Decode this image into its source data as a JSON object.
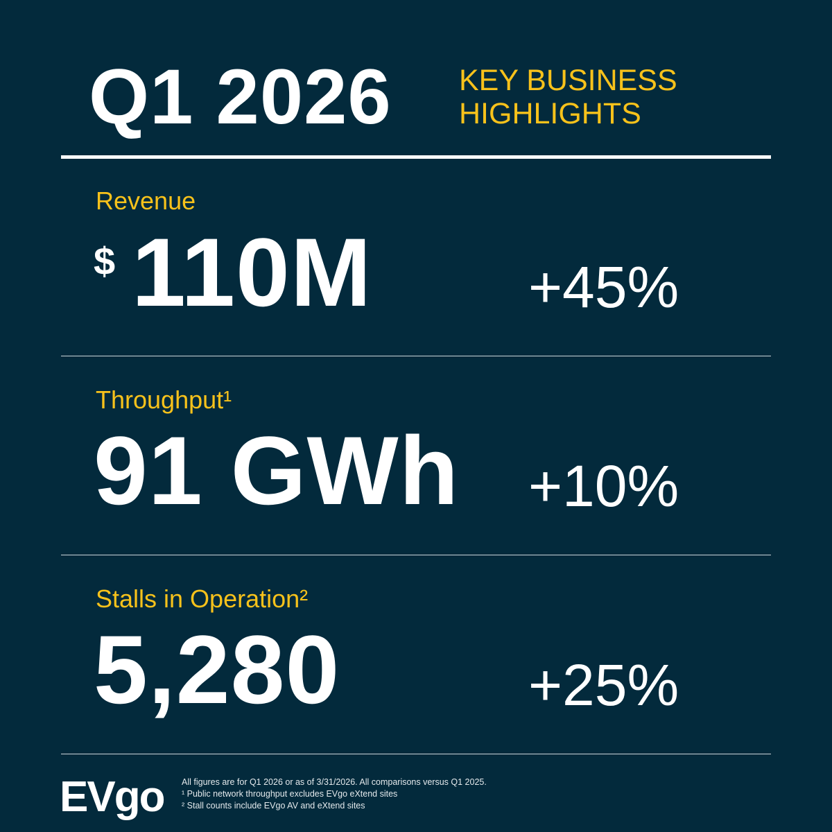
{
  "header": {
    "quarter_title": "Q1 2026",
    "subtitle_line1": "KEY BUSINESS",
    "subtitle_line2": "HIGHLIGHTS"
  },
  "metrics": [
    {
      "label": "Revenue",
      "currency_symbol": "$",
      "value": "110M",
      "change": "+45%"
    },
    {
      "label": "Throughput¹",
      "value": "91 GWh",
      "change": "+10%"
    },
    {
      "label": "Stalls in Operation²",
      "value": "5,280",
      "change": "+25%"
    }
  ],
  "footer": {
    "logo_text": "EVgo",
    "notes": [
      "All figures are for Q1 2026 or as of 3/31/2026. All comparisons versus Q1 2025.",
      "¹ Public network throughput excludes EVgo eXtend sites",
      "² Stall counts include EVgo AV and eXtend sites"
    ]
  },
  "colors": {
    "background": "#032a3c",
    "accent": "#f8c21b",
    "text": "#ffffff"
  }
}
